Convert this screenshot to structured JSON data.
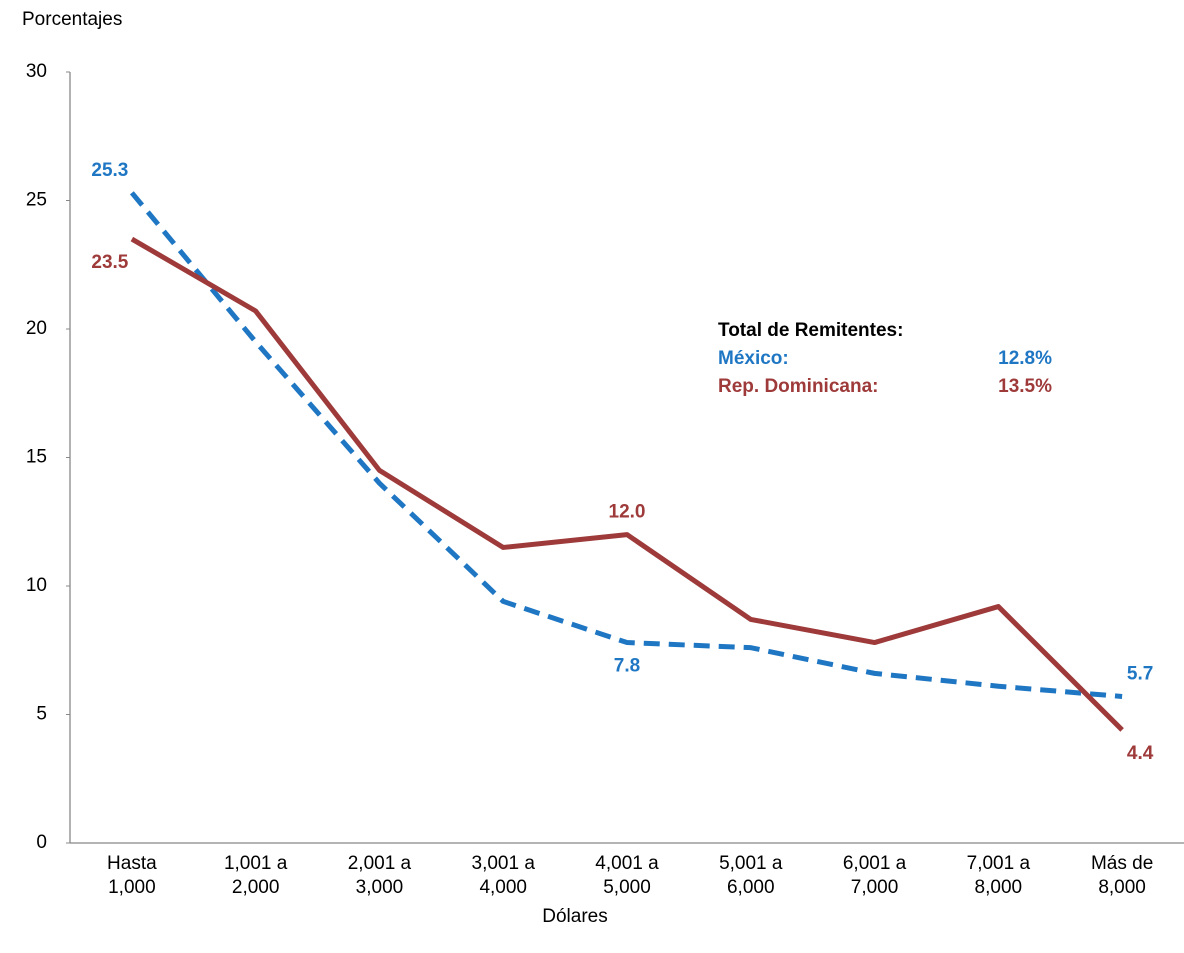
{
  "chart_data": {
    "type": "line",
    "y_label": "Porcentajes",
    "x_label": "Dólares",
    "categories": [
      "Hasta\n1,000",
      "1,001 a\n2,000",
      "2,001 a\n3,000",
      "3,001 a\n4,000",
      "4,001 a\n5,000",
      "5,001 a\n6,000",
      "6,001 a\n7,000",
      "7,001 a\n8,000",
      "Más de\n8,000"
    ],
    "ylim": [
      0,
      30
    ],
    "yticks": [
      0,
      5,
      10,
      15,
      20,
      25,
      30
    ],
    "grid": false,
    "annotation_title": "Total de Remitentes:",
    "series": [
      {
        "name": "México:",
        "total": "12.8%",
        "color": "#1f77c4",
        "dashed": true,
        "values": [
          25.3,
          19.5,
          14.0,
          9.4,
          7.8,
          7.6,
          6.6,
          6.1,
          5.7
        ],
        "value_labels": [
          "25.3",
          null,
          null,
          null,
          "7.8",
          null,
          null,
          null,
          "5.7"
        ]
      },
      {
        "name": "Rep. Dominicana:",
        "total": "13.5%",
        "color": "#9e3a3a",
        "dashed": false,
        "values": [
          23.5,
          20.7,
          14.5,
          11.5,
          12.0,
          8.7,
          7.8,
          9.2,
          4.4
        ],
        "value_labels": [
          "23.5",
          null,
          null,
          null,
          "12.0",
          null,
          null,
          null,
          "4.4"
        ]
      }
    ]
  }
}
